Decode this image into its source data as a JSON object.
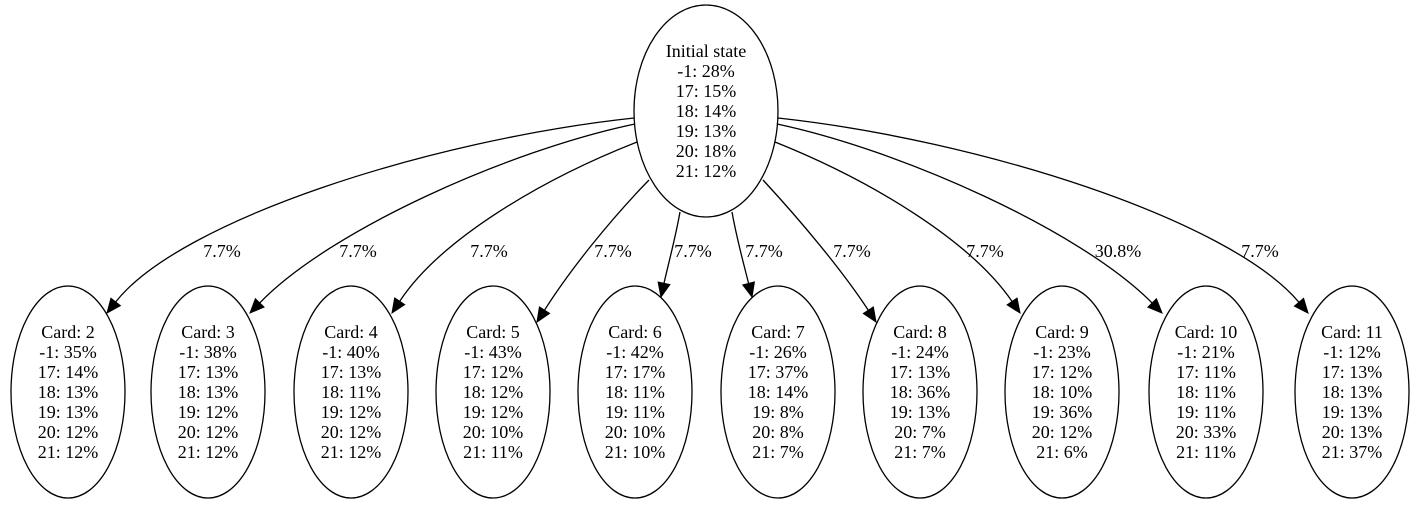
{
  "root": {
    "title": "Initial state",
    "lines": [
      "-1: 28%",
      "17: 15%",
      "18: 14%",
      "19: 13%",
      "20: 18%",
      "21: 12%"
    ]
  },
  "children": [
    {
      "title": "Card: 2",
      "edge_label": "7.7%",
      "lines": [
        "-1: 35%",
        "17: 14%",
        "18: 13%",
        "19: 13%",
        "20: 12%",
        "21: 12%"
      ]
    },
    {
      "title": "Card: 3",
      "edge_label": "7.7%",
      "lines": [
        "-1: 38%",
        "17: 13%",
        "18: 13%",
        "19: 12%",
        "20: 12%",
        "21: 12%"
      ]
    },
    {
      "title": "Card: 4",
      "edge_label": "7.7%",
      "lines": [
        "-1: 40%",
        "17: 13%",
        "18: 11%",
        "19: 12%",
        "20: 12%",
        "21: 12%"
      ]
    },
    {
      "title": "Card: 5",
      "edge_label": "7.7%",
      "lines": [
        "-1: 43%",
        "17: 12%",
        "18: 12%",
        "19: 12%",
        "20: 10%",
        "21: 11%"
      ]
    },
    {
      "title": "Card: 6",
      "edge_label": "7.7%",
      "lines": [
        "-1: 42%",
        "17: 17%",
        "18: 11%",
        "19: 11%",
        "20: 10%",
        "21: 10%"
      ]
    },
    {
      "title": "Card: 7",
      "edge_label": "7.7%",
      "lines": [
        "-1: 26%",
        "17: 37%",
        "18: 14%",
        "19: 8%",
        "20: 8%",
        "21: 7%"
      ]
    },
    {
      "title": "Card: 8",
      "edge_label": "7.7%",
      "lines": [
        "-1: 24%",
        "17: 13%",
        "18: 36%",
        "19: 13%",
        "20: 7%",
        "21: 7%"
      ]
    },
    {
      "title": "Card: 9",
      "edge_label": "7.7%",
      "lines": [
        "-1: 23%",
        "17: 12%",
        "18: 10%",
        "19: 36%",
        "20: 12%",
        "21: 6%"
      ]
    },
    {
      "title": "Card: 10",
      "edge_label": "30.8%",
      "lines": [
        "-1: 21%",
        "17: 11%",
        "18: 11%",
        "19: 11%",
        "20: 33%",
        "21: 11%"
      ]
    },
    {
      "title": "Card: 11",
      "edge_label": "7.7%",
      "lines": [
        "-1: 12%",
        "17: 13%",
        "18: 13%",
        "19: 13%",
        "20: 13%",
        "21: 37%"
      ]
    }
  ]
}
